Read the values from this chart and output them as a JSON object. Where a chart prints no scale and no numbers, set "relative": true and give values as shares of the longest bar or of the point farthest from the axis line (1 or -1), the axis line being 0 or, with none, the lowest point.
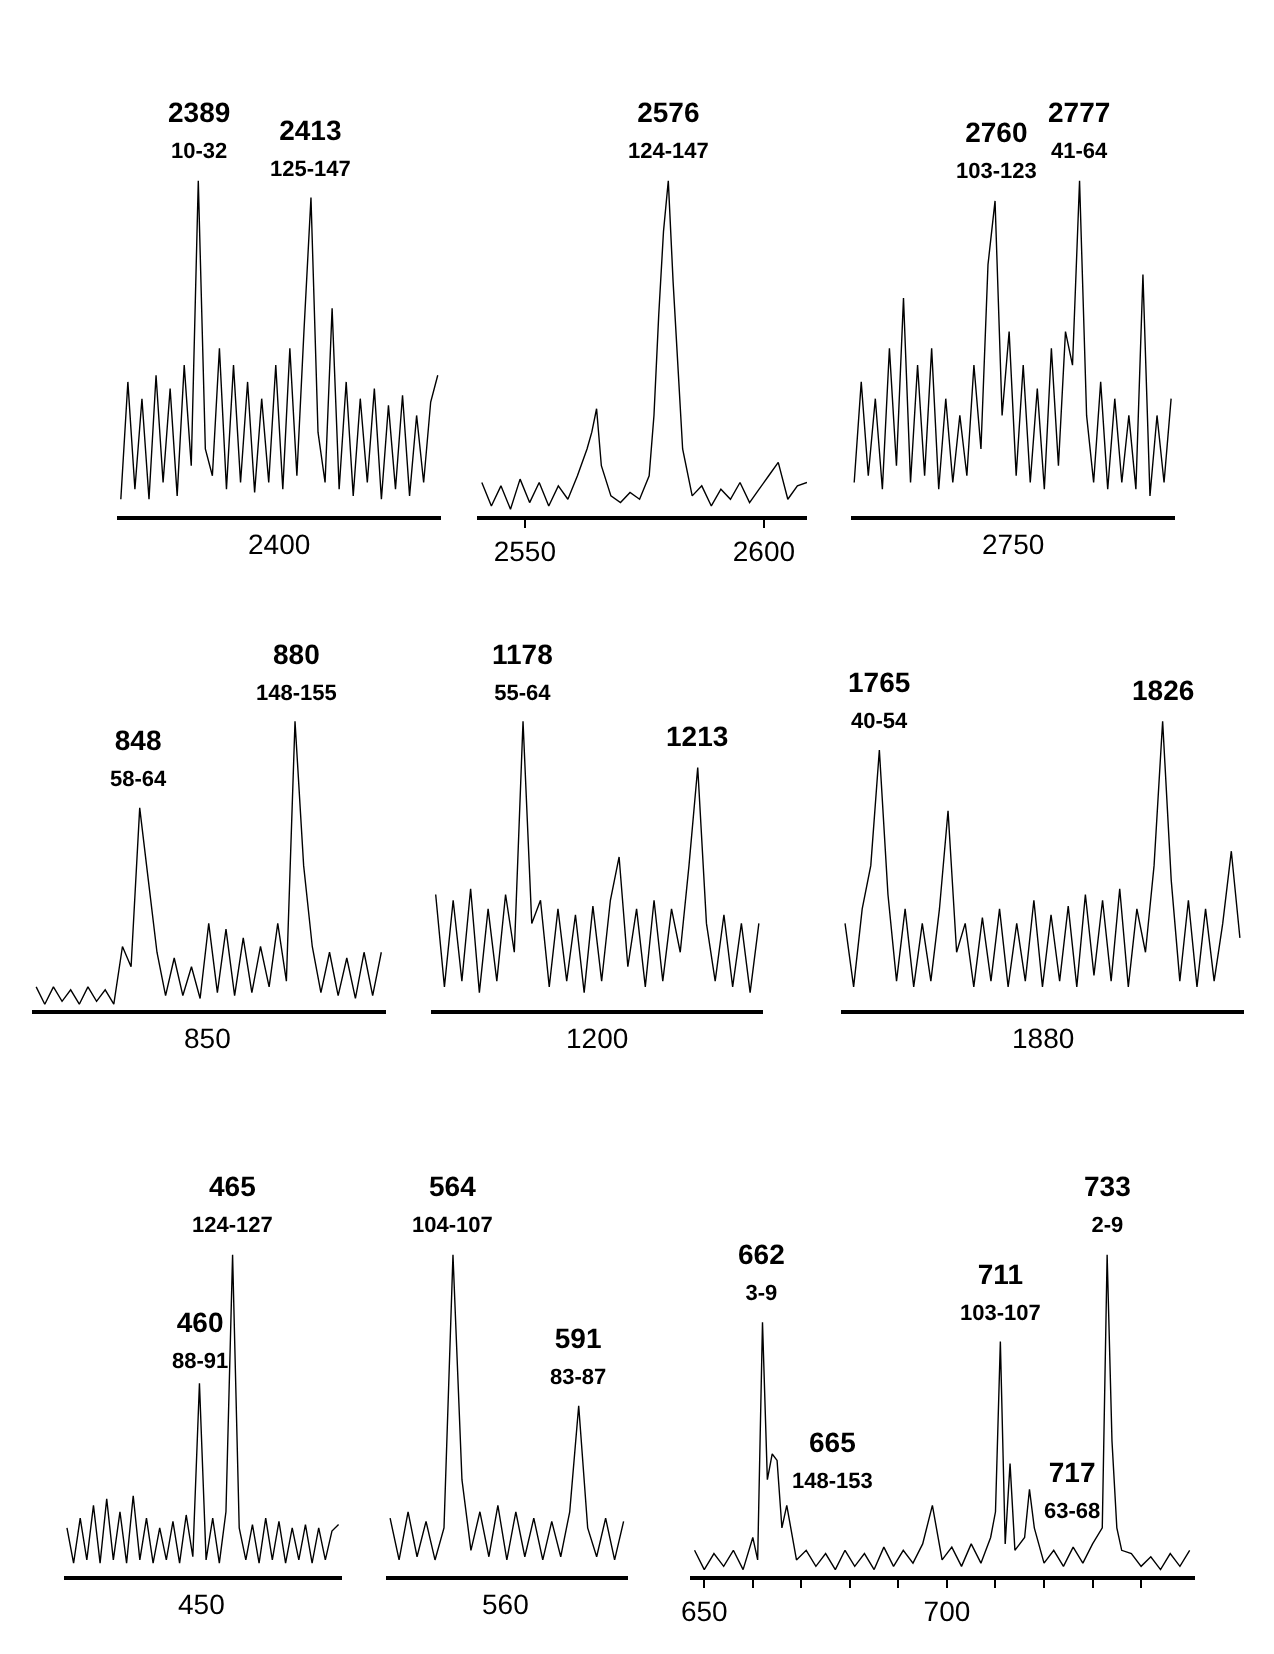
{
  "chart_data": [
    {
      "type": "line",
      "relative": true,
      "color": "#000000",
      "categories": [
        null,
        null,
        null,
        null,
        null,
        null,
        null,
        null,
        null,
        null,
        null,
        null,
        null,
        null,
        null,
        null,
        null,
        null,
        null,
        null,
        null,
        null,
        null,
        null,
        null,
        null,
        null,
        null,
        null,
        null,
        null,
        null,
        null,
        null,
        null,
        null,
        null,
        null,
        null,
        null,
        null,
        null,
        null,
        null,
        null,
        null
      ],
      "values": [
        0.05,
        0.4,
        0.08,
        0.35,
        0.05,
        0.42,
        0.1,
        0.38,
        0.06,
        0.45,
        0.15,
        1.0,
        0.2,
        0.12,
        0.5,
        0.08,
        0.45,
        0.1,
        0.4,
        0.07,
        0.35,
        0.1,
        0.45,
        0.08,
        0.5,
        0.12,
        0.55,
        0.95,
        0.25,
        0.1,
        0.62,
        0.08,
        0.4,
        0.06,
        0.35,
        0.1,
        0.38,
        0.05,
        0.33,
        0.08,
        0.36,
        0.06,
        0.3,
        0.1,
        0.34,
        0.42
      ],
      "annotations": [
        "2400",
        {
          "text": "2389\n10-32",
          "y": 1.0
        },
        {
          "text": "2413\n125-147",
          "y": 0.95
        }
      ]
    },
    {
      "type": "line",
      "relative": true,
      "color": "#000000",
      "xlim": [
        2540,
        2609
      ],
      "xticks": [
        2550,
        2600
      ],
      "x": [
        2541,
        2543,
        2545,
        2547,
        2549,
        2551,
        2553,
        2555,
        2557,
        2559,
        2561,
        2563,
        2564,
        2565,
        2566,
        2568,
        2570,
        2572,
        2574,
        2576,
        2577,
        2578,
        2579,
        2580,
        2581,
        2582,
        2583,
        2585,
        2587,
        2589,
        2591,
        2593,
        2595,
        2597,
        2599,
        2601,
        2603,
        2605,
        2607,
        2609
      ],
      "values": [
        0.1,
        0.03,
        0.09,
        0.02,
        0.11,
        0.04,
        0.1,
        0.03,
        0.09,
        0.05,
        0.12,
        0.2,
        0.25,
        0.32,
        0.15,
        0.06,
        0.04,
        0.07,
        0.05,
        0.12,
        0.3,
        0.6,
        0.85,
        1.0,
        0.7,
        0.45,
        0.2,
        0.06,
        0.09,
        0.03,
        0.08,
        0.05,
        0.1,
        0.04,
        0.08,
        0.12,
        0.16,
        0.05,
        0.09,
        0.1
      ],
      "annotations": [
        {
          "text": "2576\n124-147",
          "x": 2580,
          "y": 1.0
        }
      ]
    },
    {
      "type": "line",
      "relative": true,
      "color": "#000000",
      "categories": [
        null,
        null,
        null,
        null,
        null,
        null,
        null,
        null,
        null,
        null,
        null,
        null,
        null,
        null,
        null,
        null,
        null,
        null,
        null,
        null,
        null,
        null,
        null,
        null,
        null,
        null,
        null,
        null,
        null,
        null,
        null,
        null,
        null,
        null,
        null,
        null,
        null,
        null,
        null,
        null,
        null,
        null,
        null,
        null,
        null,
        null
      ],
      "values": [
        0.1,
        0.4,
        0.12,
        0.35,
        0.08,
        0.5,
        0.15,
        0.65,
        0.1,
        0.45,
        0.12,
        0.5,
        0.08,
        0.35,
        0.1,
        0.3,
        0.12,
        0.45,
        0.2,
        0.75,
        0.94,
        0.3,
        0.55,
        0.12,
        0.45,
        0.1,
        0.38,
        0.08,
        0.5,
        0.15,
        0.55,
        0.45,
        1.0,
        0.3,
        0.1,
        0.4,
        0.08,
        0.35,
        0.1,
        0.3,
        0.08,
        0.72,
        0.06,
        0.3,
        0.1,
        0.35
      ],
      "annotations": [
        "2750",
        {
          "text": "2760\n103-123",
          "y": 0.94
        },
        {
          "text": "2777\n41-64",
          "y": 1.0
        }
      ]
    },
    {
      "type": "line",
      "relative": true,
      "color": "#000000",
      "categories": [
        null,
        null,
        null,
        null,
        null,
        null,
        null,
        null,
        null,
        null,
        null,
        null,
        null,
        null,
        null,
        null,
        null,
        null,
        null,
        null,
        null,
        null,
        null,
        null,
        null,
        null,
        null,
        null,
        null,
        null,
        null,
        null,
        null,
        null,
        null,
        null,
        null,
        null,
        null,
        null,
        null
      ],
      "values": [
        0.08,
        0.02,
        0.08,
        0.03,
        0.07,
        0.02,
        0.08,
        0.03,
        0.07,
        0.02,
        0.22,
        0.15,
        0.7,
        0.45,
        0.2,
        0.05,
        0.18,
        0.05,
        0.15,
        0.04,
        0.3,
        0.06,
        0.28,
        0.05,
        0.25,
        0.06,
        0.22,
        0.08,
        0.3,
        0.1,
        1.0,
        0.5,
        0.22,
        0.06,
        0.2,
        0.05,
        0.18,
        0.04,
        0.2,
        0.05,
        0.2
      ],
      "annotations": [
        "850",
        {
          "text": "848\n58-64",
          "y": 0.7
        },
        {
          "text": "880\n148-155",
          "y": 1.0
        }
      ]
    },
    {
      "type": "line",
      "relative": true,
      "color": "#000000",
      "categories": [
        null,
        null,
        null,
        null,
        null,
        null,
        null,
        null,
        null,
        null,
        null,
        null,
        null,
        null,
        null,
        null,
        null,
        null,
        null,
        null,
        null,
        null,
        null,
        null,
        null,
        null,
        null,
        null,
        null,
        null,
        null,
        null,
        null,
        null,
        null,
        null,
        null,
        null
      ],
      "values": [
        0.4,
        0.08,
        0.38,
        0.1,
        0.42,
        0.06,
        0.35,
        0.1,
        0.4,
        0.2,
        1.0,
        0.3,
        0.38,
        0.08,
        0.35,
        0.1,
        0.33,
        0.06,
        0.36,
        0.1,
        0.38,
        0.53,
        0.15,
        0.35,
        0.08,
        0.38,
        0.1,
        0.35,
        0.2,
        0.5,
        0.84,
        0.3,
        0.1,
        0.33,
        0.08,
        0.3,
        0.06,
        0.3
      ],
      "annotations": [
        "1200",
        {
          "text": "1178\n55-64",
          "y": 1.0
        },
        {
          "text": "1213",
          "y": 0.84
        }
      ]
    },
    {
      "type": "line",
      "relative": true,
      "color": "#000000",
      "categories": [
        null,
        null,
        null,
        null,
        null,
        null,
        null,
        null,
        null,
        null,
        null,
        null,
        null,
        null,
        null,
        null,
        null,
        null,
        null,
        null,
        null,
        null,
        null,
        null,
        null,
        null,
        null,
        null,
        null,
        null,
        null,
        null,
        null,
        null,
        null,
        null,
        null,
        null,
        null,
        null,
        null,
        null,
        null,
        null,
        null,
        null,
        null
      ],
      "values": [
        0.3,
        0.08,
        0.35,
        0.5,
        0.9,
        0.4,
        0.1,
        0.35,
        0.08,
        0.3,
        0.1,
        0.35,
        0.69,
        0.2,
        0.3,
        0.08,
        0.32,
        0.1,
        0.35,
        0.08,
        0.3,
        0.1,
        0.38,
        0.08,
        0.33,
        0.1,
        0.36,
        0.08,
        0.4,
        0.12,
        0.38,
        0.1,
        0.42,
        0.08,
        0.35,
        0.2,
        0.5,
        1.0,
        0.45,
        0.1,
        0.38,
        0.08,
        0.35,
        0.1,
        0.3,
        0.55,
        0.25
      ],
      "annotations": [
        "1880",
        {
          "text": "1765\n40-54",
          "y": 0.9
        },
        {
          "text": "1826",
          "y": 1.0
        }
      ]
    },
    {
      "type": "line",
      "relative": true,
      "color": "#000000",
      "categories": [
        null,
        null,
        null,
        null,
        null,
        null,
        null,
        null,
        null,
        null,
        null,
        null,
        null,
        null,
        null,
        null,
        null,
        null,
        null,
        null,
        null,
        null,
        null,
        null,
        null,
        null,
        null,
        null,
        null,
        null,
        null,
        null,
        null,
        null,
        null,
        null,
        null,
        null,
        null,
        null,
        null,
        null
      ],
      "values": [
        0.15,
        0.04,
        0.18,
        0.05,
        0.22,
        0.04,
        0.24,
        0.05,
        0.2,
        0.04,
        0.25,
        0.05,
        0.18,
        0.04,
        0.15,
        0.05,
        0.17,
        0.04,
        0.19,
        0.06,
        0.6,
        0.05,
        0.18,
        0.04,
        0.2,
        1.0,
        0.15,
        0.05,
        0.16,
        0.04,
        0.18,
        0.05,
        0.17,
        0.04,
        0.15,
        0.05,
        0.16,
        0.04,
        0.15,
        0.05,
        0.14,
        0.16
      ],
      "annotations": [
        "450",
        {
          "text": "460\n88-91",
          "y": 0.6
        },
        {
          "text": "465\n124-127",
          "y": 1.0
        }
      ]
    },
    {
      "type": "line",
      "relative": true,
      "color": "#000000",
      "categories": [
        null,
        null,
        null,
        null,
        null,
        null,
        null,
        null,
        null,
        null,
        null,
        null,
        null,
        null,
        null,
        null,
        null,
        null,
        null,
        null,
        null,
        null,
        null,
        null,
        null,
        null,
        null
      ],
      "values": [
        0.18,
        0.05,
        0.2,
        0.06,
        0.17,
        0.05,
        0.15,
        1.0,
        0.3,
        0.08,
        0.2,
        0.06,
        0.22,
        0.05,
        0.2,
        0.06,
        0.18,
        0.05,
        0.17,
        0.06,
        0.2,
        0.53,
        0.15,
        0.06,
        0.18,
        0.05,
        0.17
      ],
      "annotations": [
        "560",
        {
          "text": "564\n104-107",
          "y": 1.0
        },
        {
          "text": "591\n83-87",
          "y": 0.53
        }
      ]
    },
    {
      "type": "line",
      "relative": true,
      "color": "#000000",
      "xlim": [
        647,
        751
      ],
      "xticks": [
        650,
        {
          "value": 660,
          "label": null
        },
        {
          "value": 670,
          "label": null
        },
        {
          "value": 680,
          "label": null
        },
        {
          "value": 690,
          "label": null
        },
        700,
        {
          "value": 710,
          "label": null
        },
        {
          "value": 720,
          "label": null
        },
        {
          "value": 730,
          "label": null
        },
        {
          "value": 740,
          "label": null
        }
      ],
      "x": [
        648,
        650,
        652,
        654,
        656,
        658,
        660,
        661,
        662,
        663,
        664,
        665,
        666,
        667,
        669,
        671,
        673,
        675,
        677,
        679,
        681,
        683,
        685,
        687,
        689,
        691,
        693,
        695,
        697,
        699,
        701,
        703,
        705,
        707,
        709,
        710,
        711,
        712,
        713,
        714,
        716,
        717,
        718,
        720,
        722,
        724,
        726,
        728,
        730,
        732,
        733,
        734,
        735,
        736,
        738,
        740,
        742,
        744,
        746,
        748,
        750
      ],
      "values": [
        0.08,
        0.02,
        0.07,
        0.03,
        0.08,
        0.02,
        0.12,
        0.05,
        0.79,
        0.3,
        0.38,
        0.36,
        0.15,
        0.22,
        0.05,
        0.08,
        0.03,
        0.07,
        0.02,
        0.08,
        0.03,
        0.07,
        0.02,
        0.09,
        0.03,
        0.08,
        0.04,
        0.1,
        0.22,
        0.05,
        0.09,
        0.03,
        0.1,
        0.04,
        0.12,
        0.2,
        0.73,
        0.1,
        0.35,
        0.08,
        0.12,
        0.27,
        0.15,
        0.04,
        0.08,
        0.03,
        0.09,
        0.04,
        0.1,
        0.15,
        1.0,
        0.42,
        0.15,
        0.08,
        0.07,
        0.03,
        0.06,
        0.02,
        0.07,
        0.03,
        0.08
      ],
      "annotations": [
        {
          "text": "662\n3-9",
          "x": 662,
          "y": 0.79
        },
        {
          "text": "665\n148-153",
          "x": 665,
          "y": 0.36
        },
        {
          "text": "711\n103-107",
          "x": 711,
          "y": 0.73
        },
        {
          "text": "717\n63-68",
          "x": 717,
          "y": 0.27
        },
        {
          "text": "733\n2-9",
          "x": 733,
          "y": 1.0
        }
      ]
    }
  ]
}
